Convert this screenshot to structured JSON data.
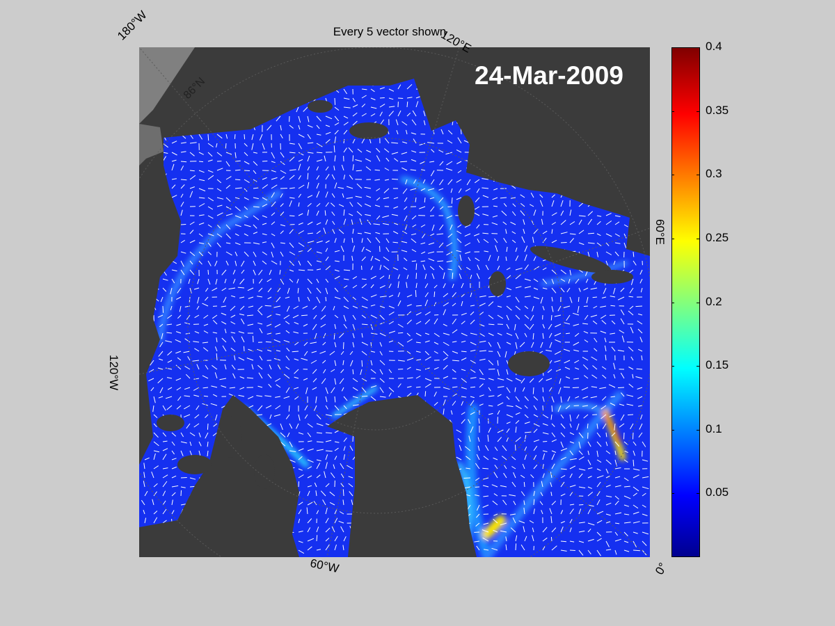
{
  "map": {
    "title": "Every 5 vector shown",
    "date_label": "24-Mar-2009",
    "longitude_labels": {
      "top_left": "180°W",
      "top_right": "120°E",
      "right": "60°E",
      "left": "120°W",
      "bottom": "60°W",
      "bottom_right": "0°"
    },
    "latitude_labels": [
      "86°N"
    ],
    "colors": {
      "background": "#cccccc",
      "land": "#3b3b3b",
      "outside_domain": "#808080",
      "grid": "#555555",
      "vectors": "#ffffff",
      "date_text": "#ffffff"
    }
  },
  "colorbar": {
    "colormap": "jet",
    "min": 0,
    "max": 0.4,
    "ticks": [
      "0.4",
      "0.35",
      "0.3",
      "0.25",
      "0.2",
      "0.15",
      "0.1",
      "0.05"
    ],
    "tick_values": [
      0.4,
      0.35,
      0.3,
      0.25,
      0.2,
      0.15,
      0.1,
      0.05
    ]
  }
}
